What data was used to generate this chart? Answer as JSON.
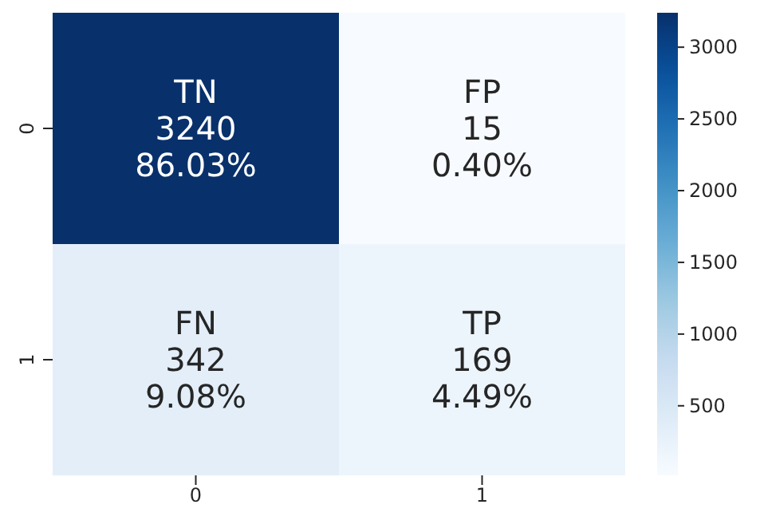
{
  "chart_data": {
    "type": "heatmap",
    "categories": [
      "0",
      "1"
    ],
    "y_categories": [
      "0",
      "1"
    ],
    "cells": [
      [
        3240,
        15
      ],
      [
        342,
        169
      ]
    ],
    "cell_labels": [
      [
        "TN\n3240\n86.03%",
        "FP\n15\n0.40%"
      ],
      [
        "FN\n342\n9.08%",
        "TP\n169\n4.49%"
      ]
    ],
    "clim": [
      15,
      3240
    ],
    "cticks": [
      500,
      1000,
      1500,
      2000,
      2500,
      3000
    ]
  }
}
